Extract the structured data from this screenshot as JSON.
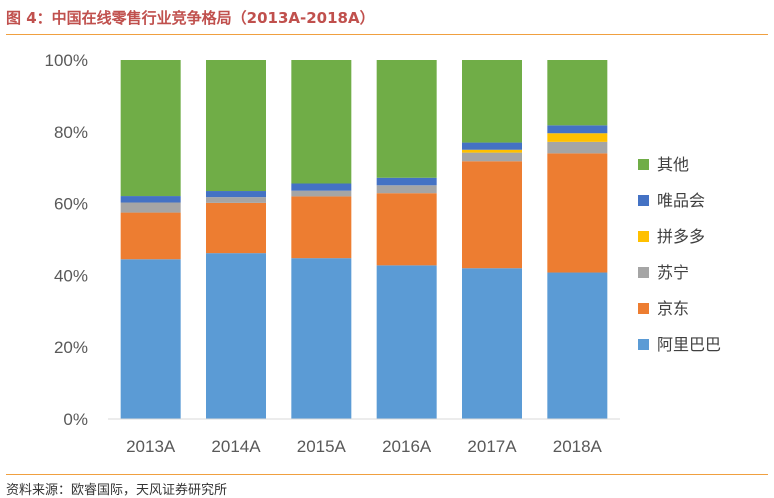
{
  "header": {
    "title": "图 4：中国在线零售行业竞争格局（2013A-2018A）"
  },
  "footer": {
    "source": "资料来源：欧睿国际，天风证券研究所"
  },
  "chart_data": {
    "type": "bar",
    "stacked": true,
    "categories": [
      "2013A",
      "2014A",
      "2015A",
      "2016A",
      "2017A",
      "2018A"
    ],
    "y_tick_labels": [
      "0%",
      "20%",
      "40%",
      "60%",
      "80%",
      "100%"
    ],
    "ylim": [
      0,
      100
    ],
    "grid": false,
    "legend_position": "right",
    "series": [
      {
        "name": "阿里巴巴",
        "color": "#5b9bd5",
        "values": [
          44.5,
          46.2,
          44.8,
          42.8,
          42.0,
          40.8
        ]
      },
      {
        "name": "京东",
        "color": "#ed7d31",
        "values": [
          13.0,
          14.0,
          17.2,
          20.1,
          29.8,
          33.2
        ]
      },
      {
        "name": "苏宁",
        "color": "#a5a5a5",
        "values": [
          2.8,
          1.6,
          1.6,
          2.2,
          2.4,
          3.2
        ]
      },
      {
        "name": "拼多多",
        "color": "#ffc000",
        "values": [
          0.0,
          0.0,
          0.0,
          0.0,
          0.8,
          2.4
        ]
      },
      {
        "name": "唯品会",
        "color": "#4472c4",
        "values": [
          1.8,
          1.7,
          2.0,
          2.1,
          2.0,
          2.2
        ]
      },
      {
        "name": "其他",
        "color": "#70ad47",
        "values": [
          37.9,
          36.5,
          34.4,
          32.8,
          23.0,
          18.2
        ]
      }
    ]
  }
}
